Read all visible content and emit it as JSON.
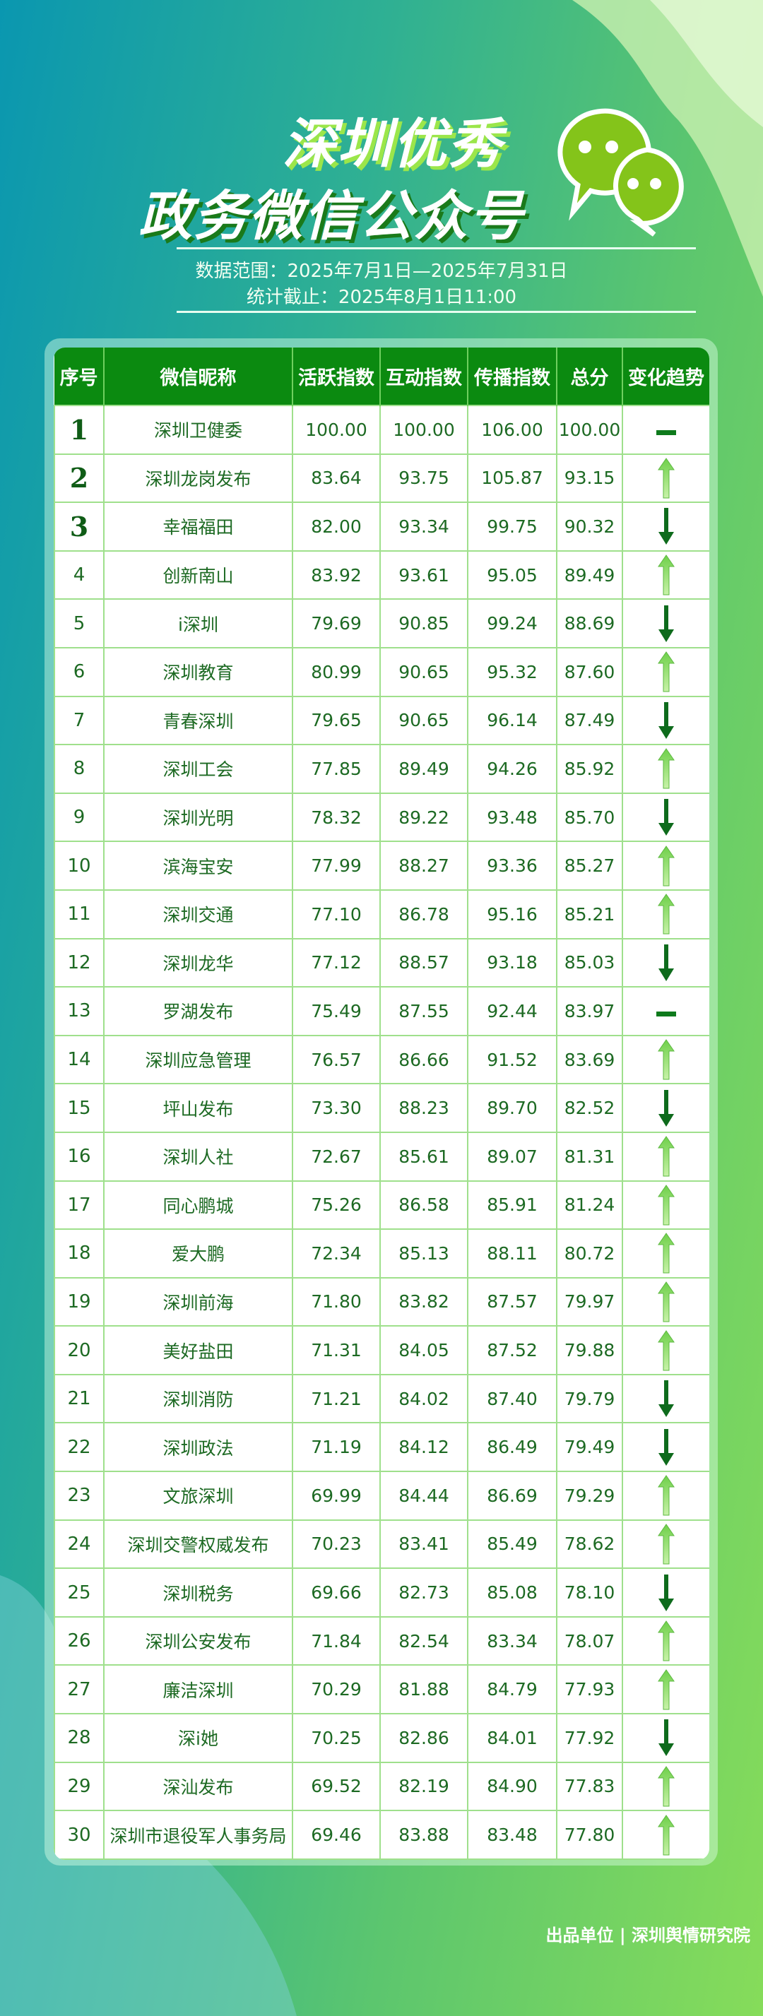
{
  "header": {
    "title_line1": "深圳优秀",
    "title_line2": "政务微信公众号",
    "icon": "wechat-icon",
    "date_range": "数据范围：2025年7月1日—2025年7月31日",
    "cutoff": "统计截止：2025年8月1日11:00"
  },
  "colors": {
    "header_bg": "#0b8a10",
    "up": "#8fe070",
    "down": "#0e6b1c",
    "text": "#1d6a23"
  },
  "table": {
    "columns": [
      "序号",
      "微信昵称",
      "活跃指数",
      "互动指数",
      "传播指数",
      "总分",
      "变化趋势"
    ],
    "rows": [
      [
        "1",
        "深圳卫健委",
        "100.00",
        "100.00",
        "106.00",
        "100.00",
        "same"
      ],
      [
        "2",
        "深圳龙岗发布",
        "83.64",
        "93.75",
        "105.87",
        "93.15",
        "up"
      ],
      [
        "3",
        "幸福福田",
        "82.00",
        "93.34",
        "99.75",
        "90.32",
        "down"
      ],
      [
        "4",
        "创新南山",
        "83.92",
        "93.61",
        "95.05",
        "89.49",
        "up"
      ],
      [
        "5",
        "i深圳",
        "79.69",
        "90.85",
        "99.24",
        "88.69",
        "down"
      ],
      [
        "6",
        "深圳教育",
        "80.99",
        "90.65",
        "95.32",
        "87.60",
        "up"
      ],
      [
        "7",
        "青春深圳",
        "79.65",
        "90.65",
        "96.14",
        "87.49",
        "down"
      ],
      [
        "8",
        "深圳工会",
        "77.85",
        "89.49",
        "94.26",
        "85.92",
        "up"
      ],
      [
        "9",
        "深圳光明",
        "78.32",
        "89.22",
        "93.48",
        "85.70",
        "down"
      ],
      [
        "10",
        "滨海宝安",
        "77.99",
        "88.27",
        "93.36",
        "85.27",
        "up"
      ],
      [
        "11",
        "深圳交通",
        "77.10",
        "86.78",
        "95.16",
        "85.21",
        "up"
      ],
      [
        "12",
        "深圳龙华",
        "77.12",
        "88.57",
        "93.18",
        "85.03",
        "down"
      ],
      [
        "13",
        "罗湖发布",
        "75.49",
        "87.55",
        "92.44",
        "83.97",
        "same"
      ],
      [
        "14",
        "深圳应急管理",
        "76.57",
        "86.66",
        "91.52",
        "83.69",
        "up"
      ],
      [
        "15",
        "坪山发布",
        "73.30",
        "88.23",
        "89.70",
        "82.52",
        "down"
      ],
      [
        "16",
        "深圳人社",
        "72.67",
        "85.61",
        "89.07",
        "81.31",
        "up"
      ],
      [
        "17",
        "同心鹏城",
        "75.26",
        "86.58",
        "85.91",
        "81.24",
        "up"
      ],
      [
        "18",
        "爱大鹏",
        "72.34",
        "85.13",
        "88.11",
        "80.72",
        "up"
      ],
      [
        "19",
        "深圳前海",
        "71.80",
        "83.82",
        "87.57",
        "79.97",
        "up"
      ],
      [
        "20",
        "美好盐田",
        "71.31",
        "84.05",
        "87.52",
        "79.88",
        "up"
      ],
      [
        "21",
        "深圳消防",
        "71.21",
        "84.02",
        "87.40",
        "79.79",
        "down"
      ],
      [
        "22",
        "深圳政法",
        "71.19",
        "84.12",
        "86.49",
        "79.49",
        "down"
      ],
      [
        "23",
        "文旅深圳",
        "69.99",
        "84.44",
        "86.69",
        "79.29",
        "up"
      ],
      [
        "24",
        "深圳交警权威发布",
        "70.23",
        "83.41",
        "85.49",
        "78.62",
        "up"
      ],
      [
        "25",
        "深圳税务",
        "69.66",
        "82.73",
        "85.08",
        "78.10",
        "down"
      ],
      [
        "26",
        "深圳公安发布",
        "71.84",
        "82.54",
        "83.34",
        "78.07",
        "up"
      ],
      [
        "27",
        "廉洁深圳",
        "70.29",
        "81.88",
        "84.79",
        "77.93",
        "up"
      ],
      [
        "28",
        "深i她",
        "70.25",
        "82.86",
        "84.01",
        "77.92",
        "down"
      ],
      [
        "29",
        "深汕发布",
        "69.52",
        "82.19",
        "84.90",
        "77.83",
        "up"
      ],
      [
        "30",
        "深圳市退役军人事务局",
        "69.46",
        "83.88",
        "83.48",
        "77.80",
        "up"
      ]
    ]
  },
  "footer": {
    "credit": "出品单位 | 深圳舆情研究院"
  }
}
